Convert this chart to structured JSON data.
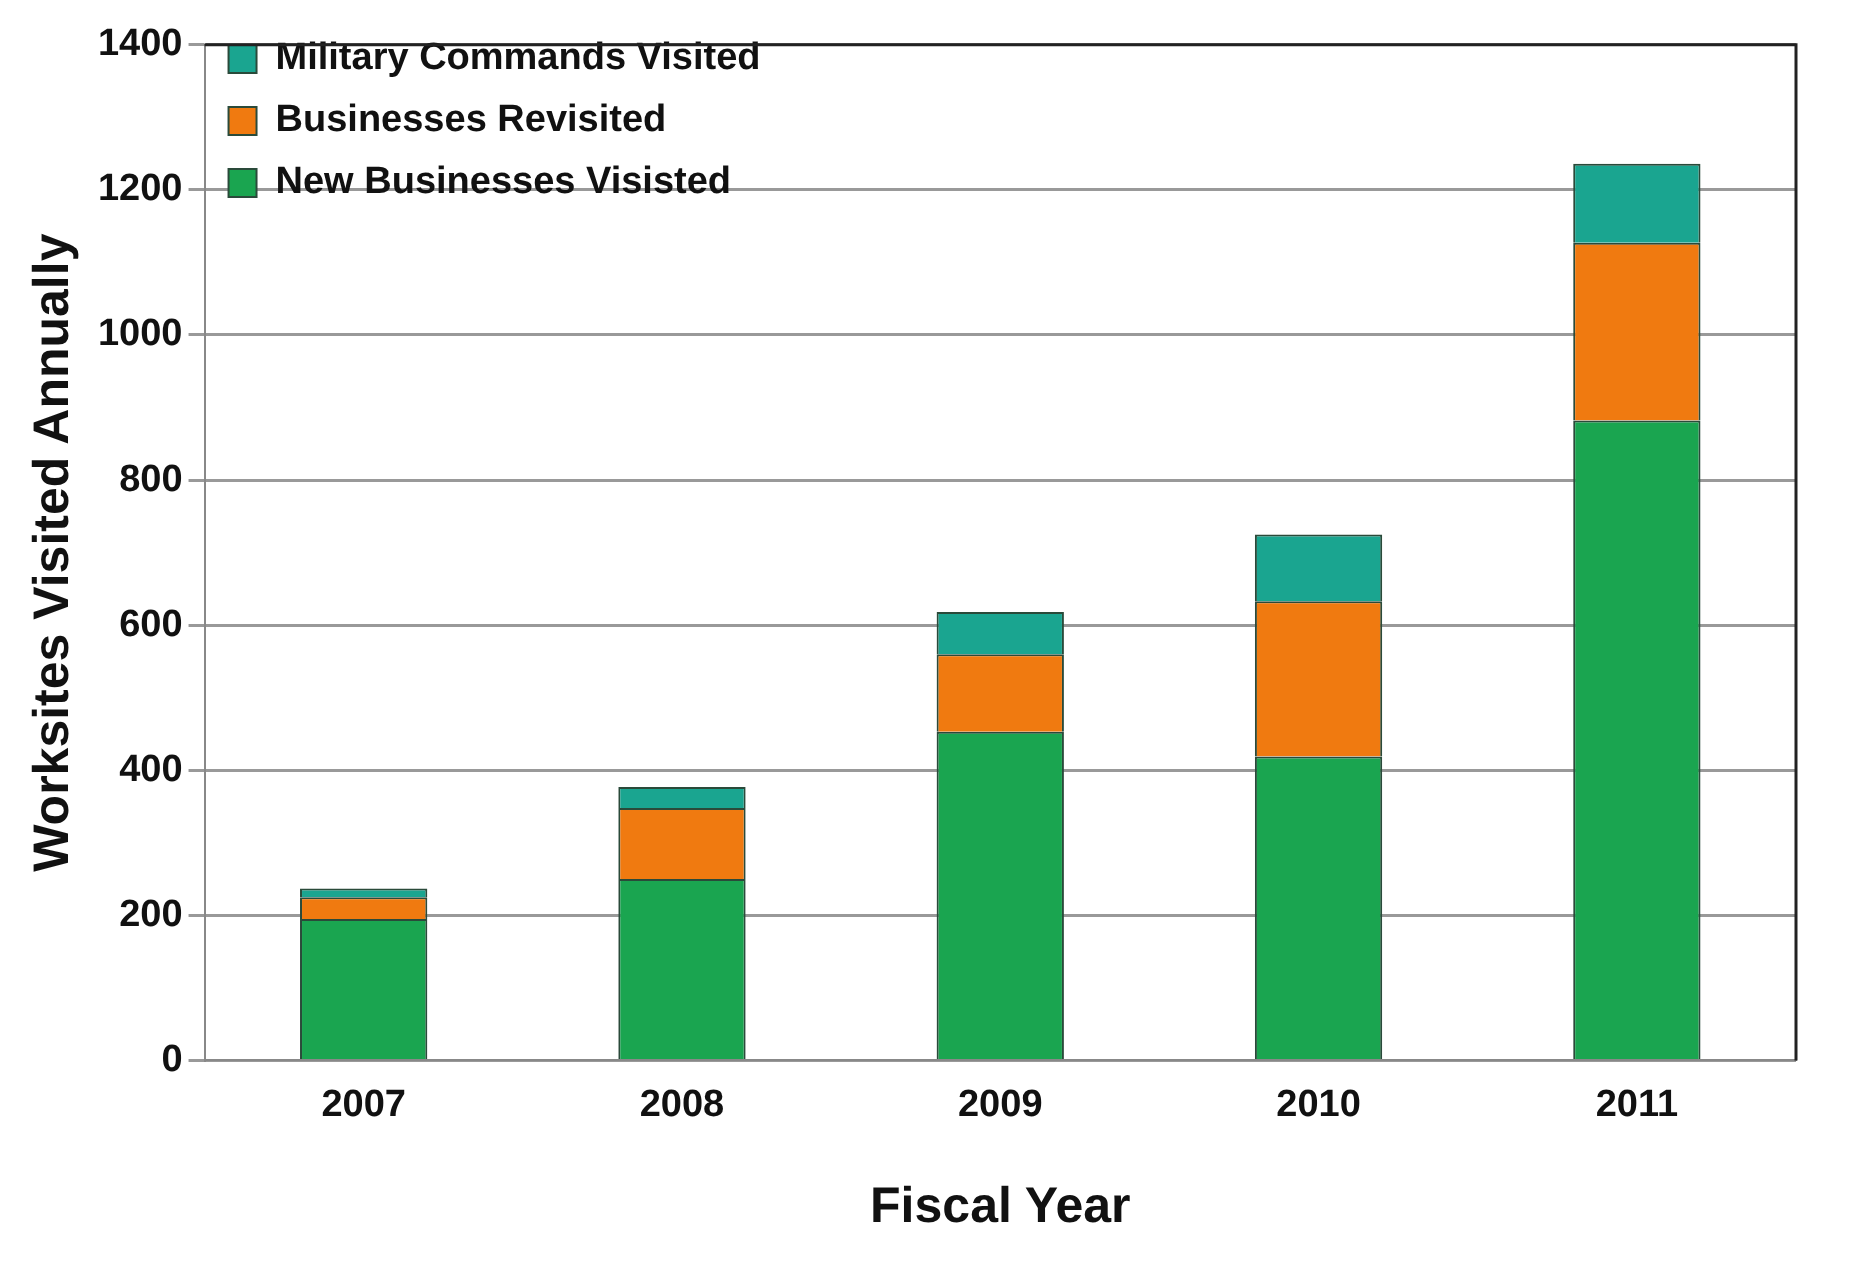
{
  "chart_data": {
    "type": "bar",
    "stacked": true,
    "xlabel": "Fiscal Year",
    "ylabel": "Worksites Visited Annually",
    "categories": [
      "2007",
      "2008",
      "2009",
      "2010",
      "2011"
    ],
    "series": [
      {
        "name": "New Businesses Visisted",
        "color": "#1aa550",
        "values": [
          195,
          250,
          453,
          419,
          882
        ]
      },
      {
        "name": "Businesses Revisited",
        "color": "#f07a10",
        "values": [
          30,
          98,
          107,
          214,
          245
        ]
      },
      {
        "name": "Military Commands Visited",
        "color": "#1aa590",
        "values": [
          12,
          29,
          58,
          92,
          109
        ]
      }
    ],
    "ylim": [
      0,
      1400
    ],
    "yticks": [
      0,
      200,
      400,
      600,
      800,
      1000,
      1200,
      1400
    ],
    "grid": "y",
    "legend": "top left"
  }
}
